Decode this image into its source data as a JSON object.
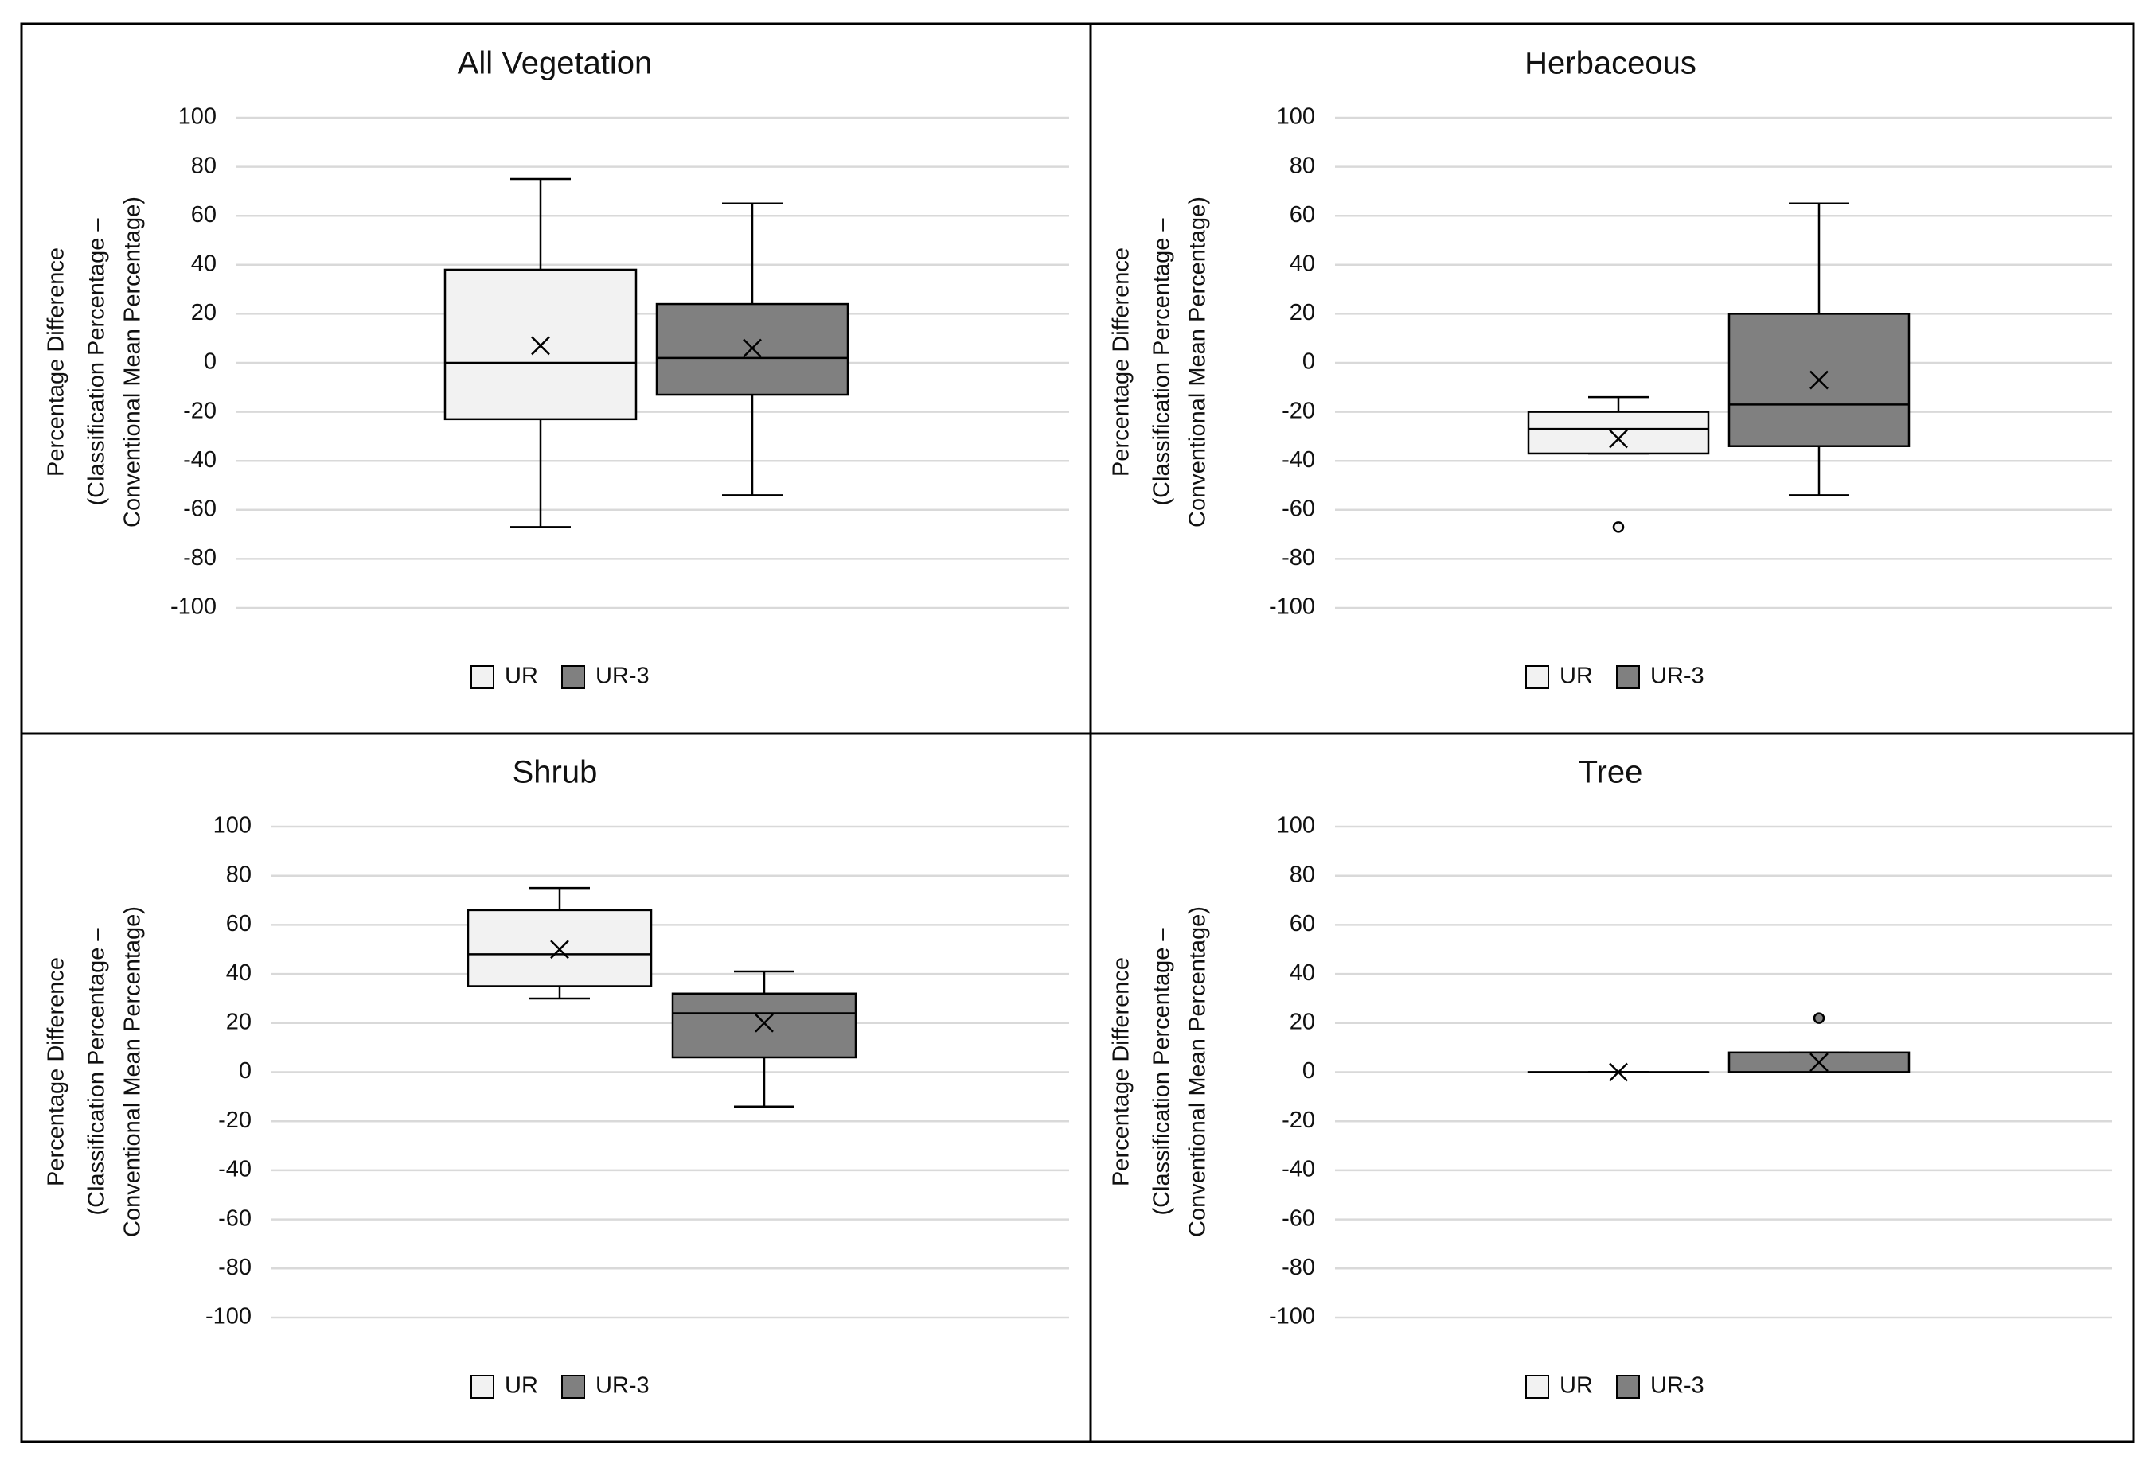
{
  "chart_data": [
    {
      "type": "box",
      "title": "All Vegetation",
      "ylabel_lines": [
        "Percentage Difference",
        "(Classification Percentage –",
        "Conventional Mean Percentage)"
      ],
      "ylim": [
        -100,
        100
      ],
      "yticks": [
        100,
        80,
        60,
        40,
        20,
        0,
        -20,
        -40,
        -60,
        -80,
        -100
      ],
      "legend": [
        "UR",
        "UR-3"
      ],
      "series": [
        {
          "name": "UR",
          "color": "#f2f2f2",
          "min": -67,
          "q1": -23,
          "median": 0,
          "q3": 38,
          "max": 75,
          "mean": 7,
          "outliers": []
        },
        {
          "name": "UR-3",
          "color": "#808080",
          "min": -54,
          "q1": -13,
          "median": 2,
          "q3": 24,
          "max": 65,
          "mean": 6,
          "outliers": []
        }
      ]
    },
    {
      "type": "box",
      "title": "Herbaceous",
      "ylabel_lines": [
        "Percentage Difference",
        "(Classification Percentage –",
        "Conventional Mean Percentage)"
      ],
      "ylim": [
        -100,
        100
      ],
      "yticks": [
        100,
        80,
        60,
        40,
        20,
        0,
        -20,
        -40,
        -60,
        -80,
        -100
      ],
      "legend": [
        "UR",
        "UR-3"
      ],
      "series": [
        {
          "name": "UR",
          "color": "#f2f2f2",
          "min": -37,
          "q1": -37,
          "median": -27,
          "q3": -20,
          "max": -14,
          "mean": -31,
          "outliers": [
            -67
          ]
        },
        {
          "name": "UR-3",
          "color": "#808080",
          "min": -54,
          "q1": -34,
          "median": -17,
          "q3": 20,
          "max": 65,
          "mean": -7,
          "outliers": []
        }
      ]
    },
    {
      "type": "box",
      "title": "Shrub",
      "ylabel_lines": [
        "Percentage Difference",
        "(Classification Percentage –",
        "Conventional Mean Percentage)"
      ],
      "ylim": [
        -100,
        100
      ],
      "yticks": [
        100,
        80,
        60,
        40,
        20,
        0,
        -20,
        -40,
        -60,
        -80,
        -100
      ],
      "legend": [
        "UR",
        "UR-3"
      ],
      "series": [
        {
          "name": "UR",
          "color": "#f2f2f2",
          "min": 30,
          "q1": 35,
          "median": 48,
          "q3": 66,
          "max": 75,
          "mean": 50,
          "outliers": []
        },
        {
          "name": "UR-3",
          "color": "#808080",
          "min": -14,
          "q1": 6,
          "median": 24,
          "q3": 32,
          "max": 41,
          "mean": 20,
          "outliers": []
        }
      ]
    },
    {
      "type": "box",
      "title": "Tree",
      "ylabel_lines": [
        "Percentage Difference",
        "(Classification Percentage –",
        "Conventional Mean Percentage)"
      ],
      "ylim": [
        -100,
        100
      ],
      "yticks": [
        100,
        80,
        60,
        40,
        20,
        0,
        -20,
        -40,
        -60,
        -80,
        -100
      ],
      "legend": [
        "UR",
        "UR-3"
      ],
      "series": [
        {
          "name": "UR",
          "color": "#f2f2f2",
          "min": 0,
          "q1": 0,
          "median": 0,
          "q3": 0,
          "max": 0,
          "mean": 0,
          "outliers": []
        },
        {
          "name": "UR-3",
          "color": "#808080",
          "min": 0,
          "q1": 0,
          "median": 0,
          "q3": 8,
          "max": 8,
          "mean": 4,
          "outliers": [
            22
          ]
        }
      ]
    }
  ]
}
